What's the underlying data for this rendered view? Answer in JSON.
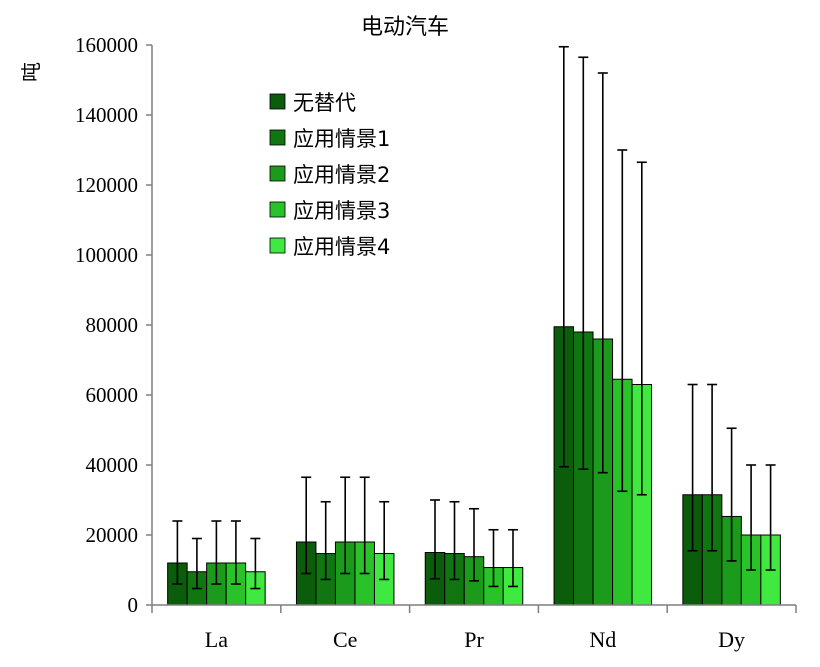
{
  "chart_data": {
    "type": "bar",
    "title": "电动汽车",
    "ylabel": "吨",
    "xlabel": "",
    "ylim": [
      0,
      160000
    ],
    "yticks": [
      "0",
      "20000",
      "40000",
      "60000",
      "80000",
      "100000",
      "120000",
      "140000",
      "160000"
    ],
    "categories": [
      "La",
      "Ce",
      "Pr",
      "Nd",
      "Dy"
    ],
    "legend_position": "upper-left",
    "series": [
      {
        "name": "无替代",
        "color": "#0b5c0b",
        "values": [
          12000,
          18000,
          15000,
          79500,
          31500
        ],
        "err_high": [
          24000,
          36500,
          30000,
          159500,
          63000
        ],
        "err_low": [
          6000,
          9000,
          7500,
          39500,
          15500
        ]
      },
      {
        "name": "应用情景1",
        "color": "#117611",
        "values": [
          9500,
          14700,
          14700,
          78000,
          31500
        ],
        "err_high": [
          19000,
          29500,
          29500,
          156500,
          63000
        ],
        "err_low": [
          4700,
          7300,
          7300,
          38800,
          15500
        ]
      },
      {
        "name": "应用情景2",
        "color": "#1c9a1c",
        "values": [
          12000,
          18000,
          13800,
          76000,
          25300
        ],
        "err_high": [
          24000,
          36500,
          27500,
          152000,
          50500
        ],
        "err_low": [
          6000,
          9000,
          6900,
          37800,
          12600
        ]
      },
      {
        "name": "应用情景3",
        "color": "#29c229",
        "values": [
          12000,
          18000,
          10700,
          64500,
          20000
        ],
        "err_high": [
          24000,
          36500,
          21500,
          130000,
          40000
        ],
        "err_low": [
          6000,
          9000,
          5300,
          32500,
          10000
        ]
      },
      {
        "name": "应用情景4",
        "color": "#3fe93f",
        "values": [
          9500,
          14700,
          10700,
          63000,
          20000
        ],
        "err_high": [
          19000,
          29500,
          21500,
          126500,
          40000
        ],
        "err_low": [
          4700,
          7300,
          5300,
          31500,
          10000
        ]
      }
    ]
  }
}
